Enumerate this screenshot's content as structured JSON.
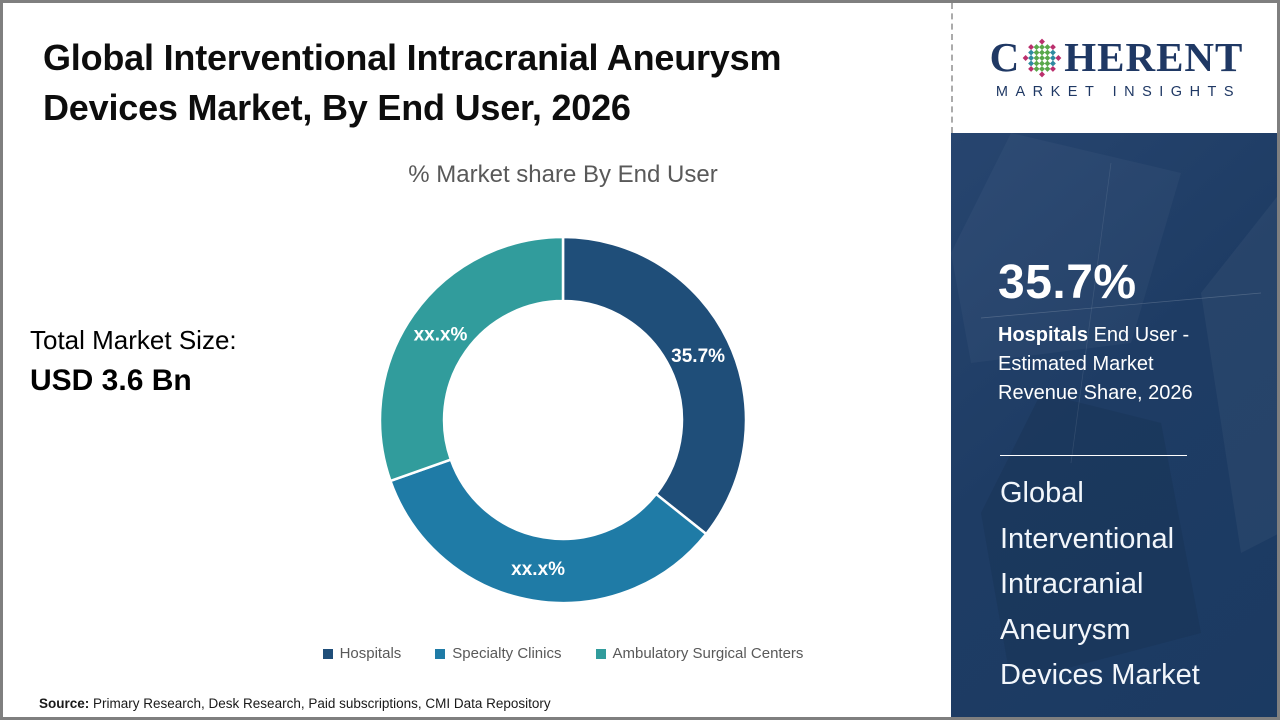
{
  "header": {
    "title": "Global Interventional Intracranial Aneurysm Devices Market, By End User, 2026",
    "title_lines": [
      "Global Interventional Intracranial Aneurysm",
      "Devices Market, By End User, 2026"
    ]
  },
  "chart": {
    "subtitle": "% Market share By End User",
    "total_label": "Total Market Size:",
    "total_value": "USD 3.6 Bn"
  },
  "chart_data": {
    "type": "pie",
    "subtype": "donut",
    "title": "% Market share By End User",
    "start_angle_deg": 0,
    "direction": "clockwise",
    "categories": [
      "Hospitals",
      "Specialty Clinics",
      "Ambulatory Surgical Centers"
    ],
    "values": [
      35.7,
      33.9,
      30.4
    ],
    "labels": [
      "35.7%",
      "xx.x%",
      "xx.x%"
    ],
    "colors": [
      "#1f4e79",
      "#1f7ba6",
      "#319c9c"
    ],
    "inner_radius_ratio": 0.65,
    "legend_position": "bottom"
  },
  "source": {
    "prefix": "Source:",
    "text": " Primary Research, Desk Research, Paid subscriptions, CMI Data Repository"
  },
  "sidebar": {
    "logo": {
      "brand_start": "C",
      "brand_end": "HERENT",
      "tagline": "MARKET INSIGHTS"
    },
    "stat_value": "35.7%",
    "stat_bold": "Hospitals",
    "stat_rest": " End User - Estimated Market Revenue Share, 2026",
    "market_name": "Global Interventional Intracranial Aneurysm Devices Market",
    "market_name_lines": [
      "Global",
      "Interventional",
      "Intracranial",
      "Aneurysm",
      "Devices Market"
    ]
  },
  "colors": {
    "panel_navy": "#1e3c64",
    "logo_navy": "#1f3864",
    "hospitals_navy": "#1f4e79",
    "specialty_blue": "#1f7ba6",
    "ambulatory_teal": "#319c9c",
    "muted_text_gray": "#595959"
  }
}
